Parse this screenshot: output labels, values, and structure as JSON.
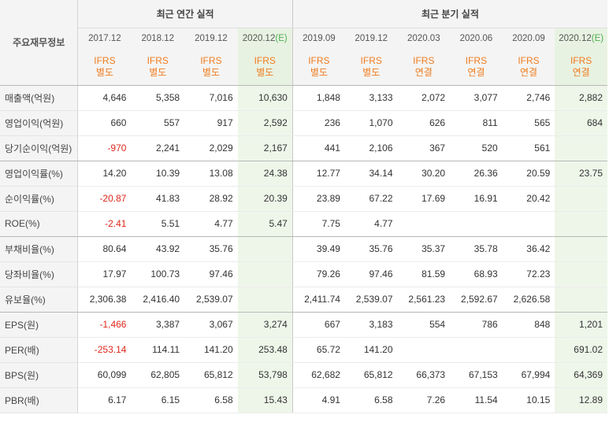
{
  "header": {
    "corner_label": "주요재무정보",
    "annual_group": "최근 연간 실적",
    "quarter_group": "최근 분기 실적",
    "columns": [
      {
        "period": "2017.12",
        "est": "",
        "ifrs": "IFRS",
        "basis": "별도"
      },
      {
        "period": "2018.12",
        "est": "",
        "ifrs": "IFRS",
        "basis": "별도"
      },
      {
        "period": "2019.12",
        "est": "",
        "ifrs": "IFRS",
        "basis": "별도"
      },
      {
        "period": "2020.12",
        "est": "(E)",
        "ifrs": "IFRS",
        "basis": "별도"
      },
      {
        "period": "2019.09",
        "est": "",
        "ifrs": "IFRS",
        "basis": "별도"
      },
      {
        "period": "2019.12",
        "est": "",
        "ifrs": "IFRS",
        "basis": "별도"
      },
      {
        "period": "2020.03",
        "est": "",
        "ifrs": "IFRS",
        "basis": "연결"
      },
      {
        "period": "2020.06",
        "est": "",
        "ifrs": "IFRS",
        "basis": "연결"
      },
      {
        "period": "2020.09",
        "est": "",
        "ifrs": "IFRS",
        "basis": "연결"
      },
      {
        "period": "2020.12",
        "est": "(E)",
        "ifrs": "IFRS",
        "basis": "연결"
      }
    ]
  },
  "rows": [
    {
      "label": "매출액(억원)",
      "values": [
        "4,646",
        "5,358",
        "7,016",
        "10,630",
        "1,848",
        "3,133",
        "2,072",
        "3,077",
        "2,746",
        "2,882"
      ]
    },
    {
      "label": "영업이익(억원)",
      "values": [
        "660",
        "557",
        "917",
        "2,592",
        "236",
        "1,070",
        "626",
        "811",
        "565",
        "684"
      ]
    },
    {
      "label": "당기순이익(억원)",
      "values": [
        "-970",
        "2,241",
        "2,029",
        "2,167",
        "441",
        "2,106",
        "367",
        "520",
        "561",
        ""
      ]
    },
    {
      "label": "영업이익률(%)",
      "values": [
        "14.20",
        "10.39",
        "13.08",
        "24.38",
        "12.77",
        "34.14",
        "30.20",
        "26.36",
        "20.59",
        "23.75"
      ]
    },
    {
      "label": "순이익률(%)",
      "values": [
        "-20.87",
        "41.83",
        "28.92",
        "20.39",
        "23.89",
        "67.22",
        "17.69",
        "16.91",
        "20.42",
        ""
      ]
    },
    {
      "label": "ROE(%)",
      "values": [
        "-2.41",
        "5.51",
        "4.77",
        "5.47",
        "7.75",
        "4.77",
        "",
        "",
        "",
        ""
      ]
    },
    {
      "label": "부채비율(%)",
      "values": [
        "80.64",
        "43.92",
        "35.76",
        "",
        "39.49",
        "35.76",
        "35.37",
        "35.78",
        "36.42",
        ""
      ]
    },
    {
      "label": "당좌비율(%)",
      "values": [
        "17.97",
        "100.73",
        "97.46",
        "",
        "79.26",
        "97.46",
        "81.59",
        "68.93",
        "72.23",
        ""
      ]
    },
    {
      "label": "유보율(%)",
      "values": [
        "2,306.38",
        "2,416.40",
        "2,539.07",
        "",
        "2,411.74",
        "2,539.07",
        "2,561.23",
        "2,592.67",
        "2,626.58",
        ""
      ]
    },
    {
      "label": "EPS(원)",
      "values": [
        "-1,466",
        "3,387",
        "3,067",
        "3,274",
        "667",
        "3,183",
        "554",
        "786",
        "848",
        "1,201"
      ]
    },
    {
      "label": "PER(배)",
      "values": [
        "-253.14",
        "114.11",
        "141.20",
        "253.48",
        "65.72",
        "141.20",
        "",
        "",
        "",
        "691.02"
      ]
    },
    {
      "label": "BPS(원)",
      "values": [
        "60,099",
        "62,805",
        "65,812",
        "53,798",
        "62,682",
        "65,812",
        "66,373",
        "67,153",
        "67,994",
        "64,369"
      ]
    },
    {
      "label": "PBR(배)",
      "values": [
        "6.17",
        "6.15",
        "6.58",
        "15.43",
        "4.91",
        "6.58",
        "7.26",
        "11.54",
        "10.15",
        "12.89"
      ]
    }
  ],
  "colors": {
    "negative": "#e0281c",
    "ifrs": "#f07c1e",
    "estimate_bg": "#eef6e9",
    "estimate_mark": "#4caf50"
  }
}
